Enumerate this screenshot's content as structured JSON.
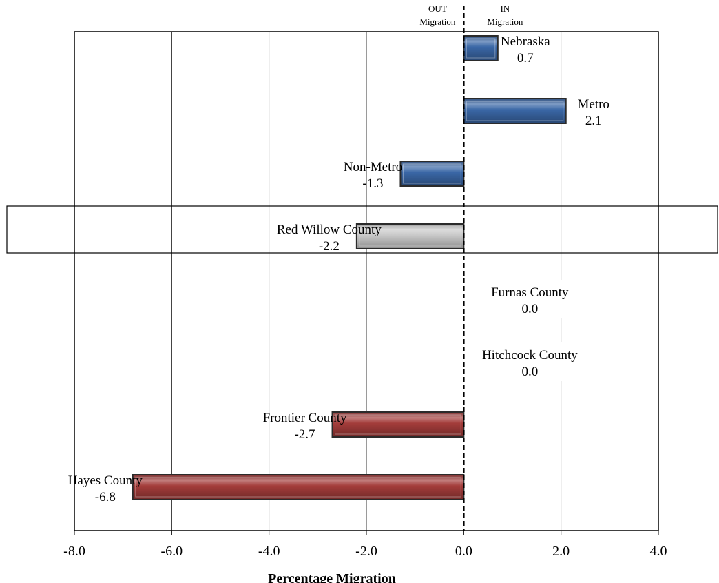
{
  "chart_data": {
    "type": "bar",
    "orientation": "horizontal",
    "xlabel": "Percentage Migration",
    "xlim": [
      -8.0,
      4.0
    ],
    "xticks": [
      -8.0,
      -6.0,
      -4.0,
      -2.0,
      0.0,
      2.0,
      4.0
    ],
    "xtick_labels": [
      "-8.0",
      "-6.0",
      "-4.0",
      "-2.0",
      "0.0",
      "2.0",
      "4.0"
    ],
    "header_left": [
      "OUT",
      "Migration"
    ],
    "header_right": [
      "IN",
      "Migration"
    ],
    "grid": "vertical",
    "highlighted_category": "Red Willow County",
    "categories": [
      "Nebraska",
      "Metro",
      "Non-Metro",
      "Red Willow County",
      "Furnas County",
      "Hitchcock County",
      "Frontier County",
      "Hayes County"
    ],
    "values": [
      0.7,
      2.1,
      -1.3,
      -2.2,
      0.0,
      0.0,
      -2.7,
      -6.8
    ],
    "value_labels": [
      "0.7",
      "2.1",
      "-1.3",
      "-2.2",
      "0.0",
      "0.0",
      "-2.7",
      "-6.8"
    ],
    "bar_colors": [
      "#3a67a6",
      "#3a67a6",
      "#3a67a6",
      "#c9c9c9",
      "#a33c3a",
      "#a33c3a",
      "#a33c3a",
      "#a33c3a"
    ]
  }
}
